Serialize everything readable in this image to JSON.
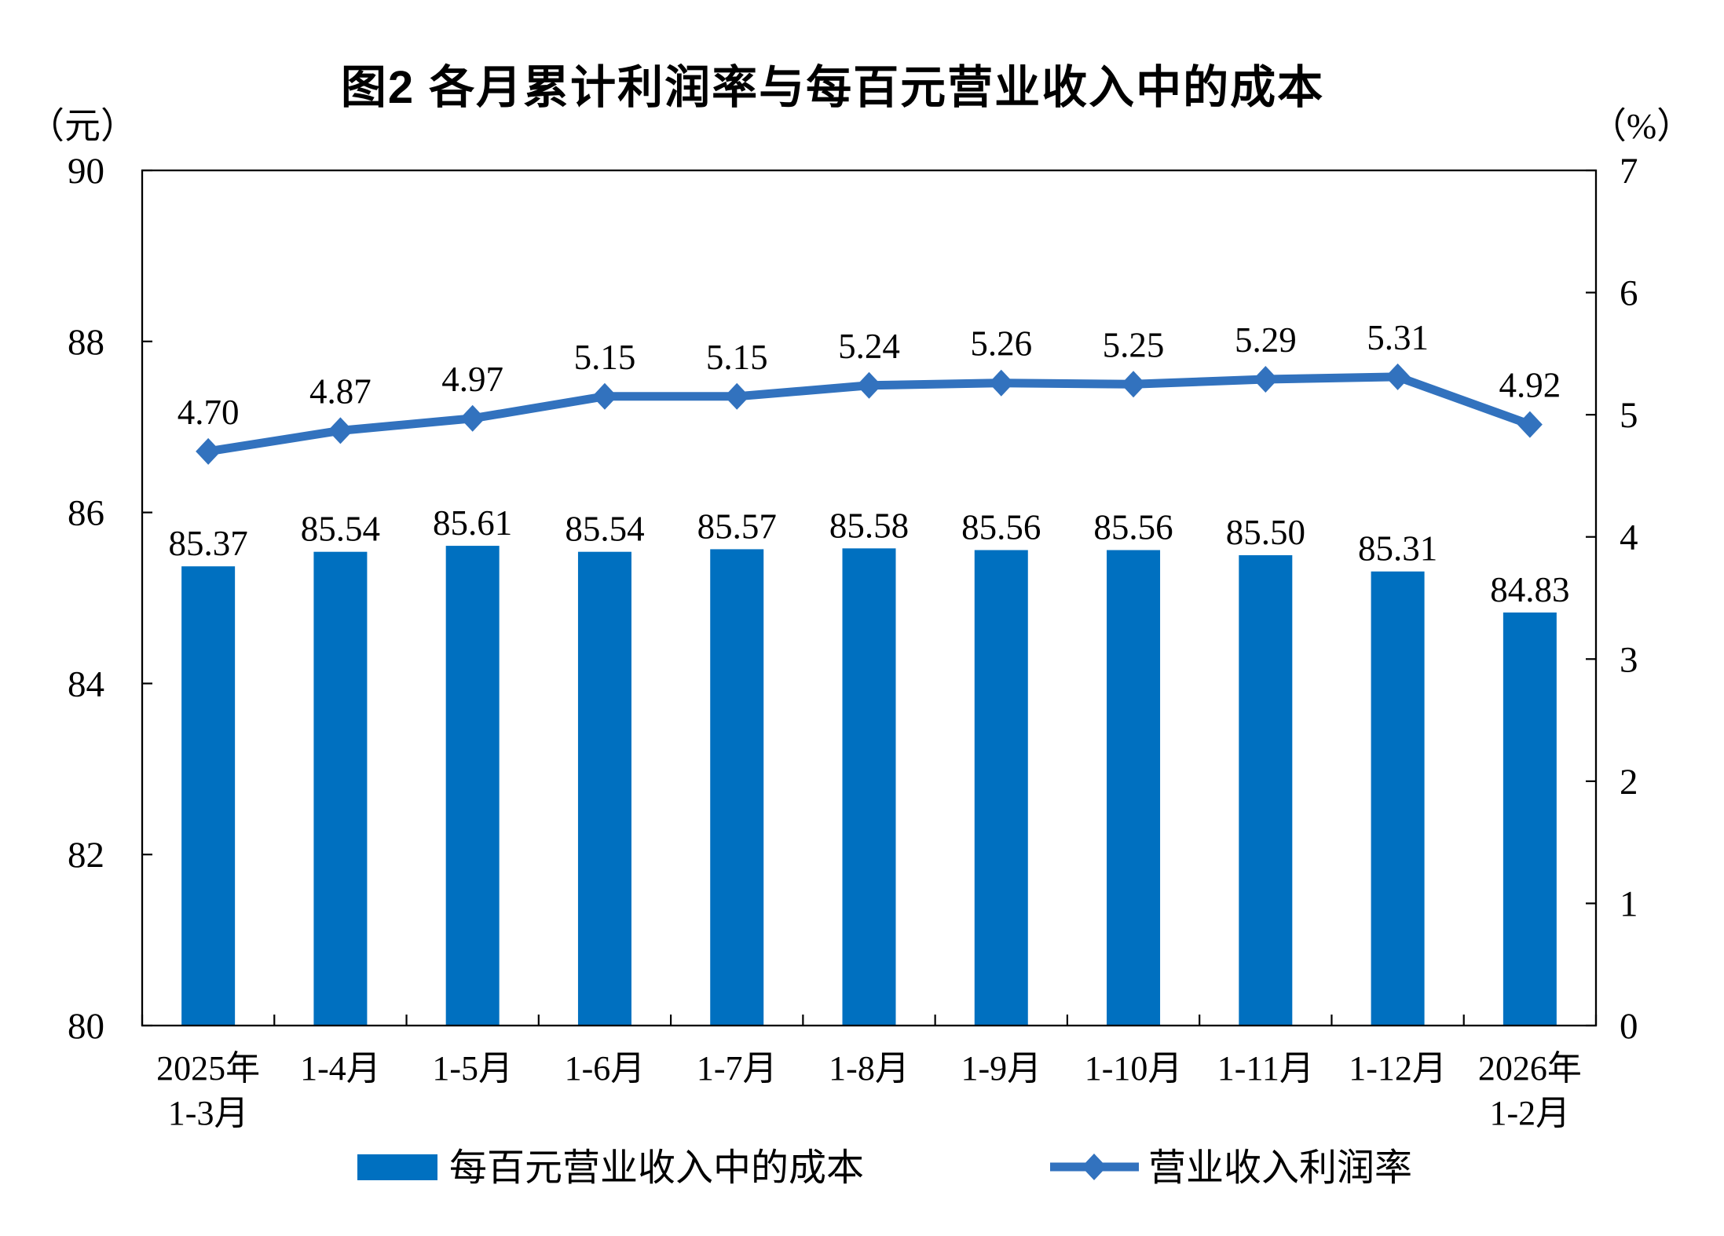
{
  "chart_data": {
    "type": "combo-bar-line",
    "title": "图2 各月累计利润率与每百元营业收入中的成本",
    "categories": [
      [
        "2025年",
        "1-3月"
      ],
      [
        "1-4月"
      ],
      [
        "1-5月"
      ],
      [
        "1-6月"
      ],
      [
        "1-7月"
      ],
      [
        "1-8月"
      ],
      [
        "1-9月"
      ],
      [
        "1-10月"
      ],
      [
        "1-11月"
      ],
      [
        "1-12月"
      ],
      [
        "2026年",
        "1-2月"
      ]
    ],
    "series": [
      {
        "name": "每百元营业收入中的成本",
        "type": "bar",
        "axis": "left",
        "color": "#0070C0",
        "values": [
          85.37,
          85.54,
          85.61,
          85.54,
          85.57,
          85.58,
          85.56,
          85.56,
          85.5,
          85.31,
          84.83
        ],
        "labels": [
          "85.37",
          "85.54",
          "85.61",
          "85.54",
          "85.57",
          "85.58",
          "85.56",
          "85.56",
          "85.50",
          "85.31",
          "84.83"
        ]
      },
      {
        "name": "营业收入利润率",
        "type": "line",
        "axis": "right",
        "color": "#3272BE",
        "marker": "diamond",
        "values": [
          4.7,
          4.87,
          4.97,
          5.15,
          5.15,
          5.24,
          5.26,
          5.25,
          5.29,
          5.31,
          4.92
        ],
        "labels": [
          "4.70",
          "4.87",
          "4.97",
          "5.15",
          "5.15",
          "5.24",
          "5.26",
          "5.25",
          "5.29",
          "5.31",
          "4.92"
        ]
      }
    ],
    "left_axis": {
      "unit": "（元）",
      "min": 80,
      "max": 90,
      "step": 2,
      "ticks": [
        "90",
        "88",
        "86",
        "84",
        "82",
        "80"
      ]
    },
    "right_axis": {
      "unit": "（%）",
      "min": 0,
      "max": 7,
      "step": 1,
      "ticks": [
        "7",
        "6",
        "5",
        "4",
        "3",
        "2",
        "1",
        "0"
      ]
    },
    "legend": [
      "每百元营业收入中的成本",
      "营业收入利润率"
    ],
    "grid": "off",
    "legend_position": "bottom",
    "frame_color": "#000000",
    "background": "#ffffff"
  }
}
